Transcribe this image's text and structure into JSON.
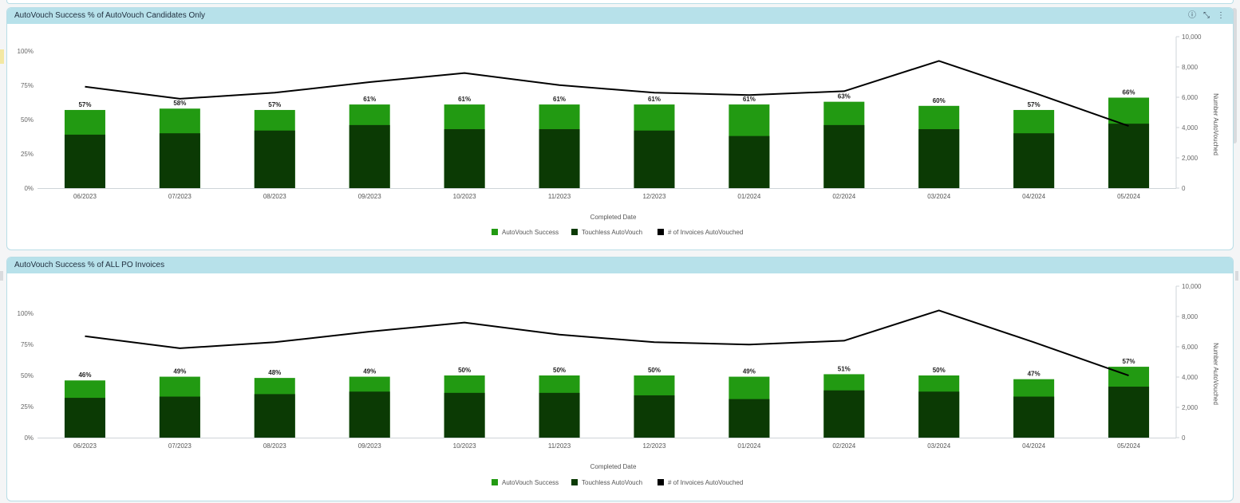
{
  "icons": {
    "info": "info-icon",
    "expand": "expand-icon",
    "menu": "more-vertical-icon"
  },
  "colors": {
    "success": "#229a12",
    "touchless": "#0b3a04",
    "line": "#000000",
    "header": "#b7e1ea"
  },
  "panels": [
    {
      "title": "AutoVouch Success % of AutoVouch Candidates Only",
      "show_icons": true,
      "chart_data": {
        "type": "bar",
        "categories": [
          "06/2023",
          "07/2023",
          "08/2023",
          "09/2023",
          "10/2023",
          "11/2023",
          "12/2023",
          "01/2024",
          "02/2024",
          "03/2024",
          "04/2024",
          "05/2024"
        ],
        "series": [
          {
            "name": "AutoVouch Success",
            "type": "bar",
            "values": [
              57,
              58,
              57,
              61,
              61,
              61,
              61,
              61,
              63,
              60,
              57,
              66
            ]
          },
          {
            "name": "Touchless AutoVouch",
            "type": "bar",
            "values": [
              39,
              40,
              42,
              46,
              43,
              43,
              42,
              38,
              46,
              43,
              40,
              47
            ]
          },
          {
            "name": "# of Invoices AutoVouched",
            "type": "line",
            "axis": "right",
            "values": [
              6700,
              5900,
              6300,
              7000,
              7600,
              6800,
              6300,
              6150,
              6400,
              8400,
              6300,
              4100
            ]
          }
        ],
        "data_labels": [
          "57%",
          "58%",
          "57%",
          "61%",
          "61%",
          "61%",
          "61%",
          "61%",
          "63%",
          "60%",
          "57%",
          "66%"
        ],
        "xlabel": "Completed Date",
        "ylabel_right": "Number AutoVouched",
        "ylim": [
          0,
          100
        ],
        "ylim_right": [
          0,
          10000
        ],
        "yticks": [
          "0%",
          "25%",
          "50%",
          "75%",
          "100%"
        ],
        "yticks_right": [
          "0",
          "2,000",
          "4,000",
          "6,000",
          "8,000",
          "10,000"
        ],
        "legend_position": "bottom",
        "grid": false
      }
    },
    {
      "title": "AutoVouch Success % of ALL PO Invoices",
      "show_icons": false,
      "chart_data": {
        "type": "bar",
        "categories": [
          "06/2023",
          "07/2023",
          "08/2023",
          "09/2023",
          "10/2023",
          "11/2023",
          "12/2023",
          "01/2024",
          "02/2024",
          "03/2024",
          "04/2024",
          "05/2024"
        ],
        "series": [
          {
            "name": "AutoVouch Success",
            "type": "bar",
            "values": [
              46,
              49,
              48,
              49,
              50,
              50,
              50,
              49,
              51,
              50,
              47,
              57
            ]
          },
          {
            "name": "Touchless AutoVouch",
            "type": "bar",
            "values": [
              32,
              33,
              35,
              37,
              36,
              36,
              34,
              31,
              38,
              37,
              33,
              41
            ]
          },
          {
            "name": "# of Invoices AutoVouched",
            "type": "line",
            "axis": "right",
            "values": [
              6700,
              5900,
              6300,
              7000,
              7600,
              6800,
              6300,
              6150,
              6400,
              8400,
              6300,
              4100
            ]
          }
        ],
        "data_labels": [
          "46%",
          "49%",
          "48%",
          "49%",
          "50%",
          "50%",
          "50%",
          "49%",
          "51%",
          "50%",
          "47%",
          "57%"
        ],
        "xlabel": "Completed Date",
        "ylabel_right": "Number AutoVouched",
        "ylim": [
          0,
          100
        ],
        "ylim_right": [
          0,
          10000
        ],
        "yticks": [
          "0%",
          "25%",
          "50%",
          "75%",
          "100%"
        ],
        "yticks_right": [
          "0",
          "2,000",
          "4,000",
          "6,000",
          "8,000",
          "10,000"
        ],
        "legend_position": "bottom",
        "grid": false
      }
    }
  ]
}
